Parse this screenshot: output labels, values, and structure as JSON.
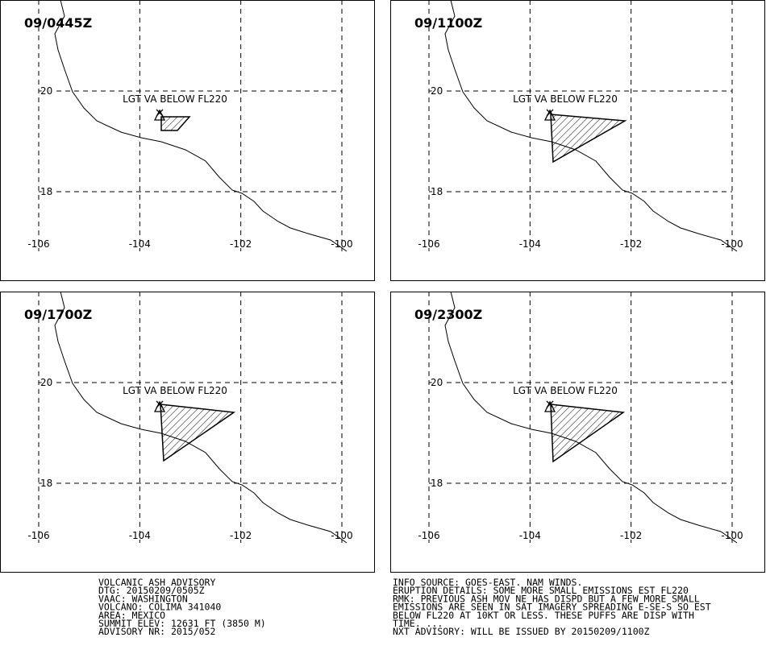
{
  "panels": [
    {
      "time": "09/0445Z",
      "annotation": "LGT VA BELOW FL220"
    },
    {
      "time": "09/1100Z",
      "annotation": "LGT VA BELOW FL220"
    },
    {
      "time": "09/1700Z",
      "annotation": "LGT VA BELOW FL220"
    },
    {
      "time": "09/2300Z",
      "annotation": "LGT VA BELOW FL220"
    }
  ],
  "grid": {
    "lon": [
      -106,
      -104,
      -102,
      -100
    ],
    "lat": [
      20,
      18
    ]
  },
  "advisory_left": [
    "VOLCANIC ASH ADVISORY",
    "DTG: 20150209/0505Z",
    "VAAC: WASHINGTON",
    "VOLCANO: COLIMA 341040",
    "AREA: MEXICO",
    "SUMMIT ELEV: 12631 FT (3850 M)",
    "ADVISORY NR: 2015/052"
  ],
  "advisory_right": [
    "INFO SOURCE: GOES-EAST. NAM WINDS.",
    "ERUPTION DETAILS: SOME MORE SMALL EMISSIONS EST FL220",
    "RMK: PREVIOUS ASH MOV NE HAS DISPD BUT A FEW MORE SMALL",
    "EMISSIONS ARE SEEN IN SAT IMAGERY SPREADING E-SE-S SO EST",
    "BELOW FL220 AT 10KT OR LESS. THESE PUFFS ARE DISP WITH",
    "TIME. ...",
    "NXT ADVISORY: WILL BE ISSUED BY 20150209/1100Z"
  ]
}
